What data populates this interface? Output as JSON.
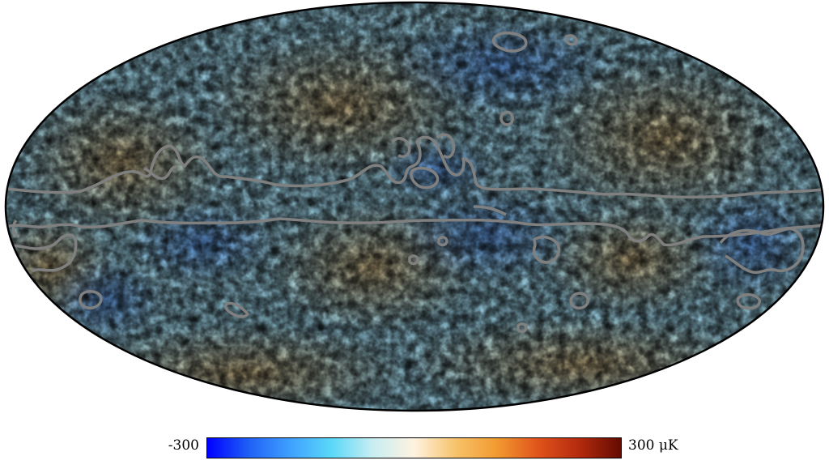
{
  "map": {
    "projection": "mollweide",
    "outline_color": "#000000",
    "mask_contour_color": "#808080"
  },
  "colorbar": {
    "min_label": "-300",
    "max_label": "300 μK",
    "colormap": [
      "#0000ff",
      "#1f60f5",
      "#3fa0ff",
      "#5ad8f8",
      "#c8eef2",
      "#fff2e0",
      "#f7c36b",
      "#f19a30",
      "#e0531b",
      "#b32a0e",
      "#640b00"
    ]
  }
}
